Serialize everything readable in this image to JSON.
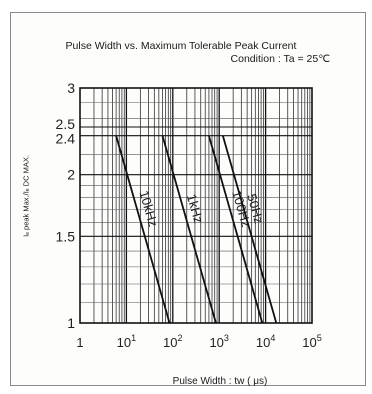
{
  "chart_data": {
    "type": "line",
    "title": "Pulse Width vs. Maximum Tolerable Peak Current",
    "subtitle": "Condition : Ta = 25℃",
    "xlabel": "Pulse Width : tw ( μs)",
    "ylabel": "Iₑ peak Max./Iₑ DC MAX.",
    "x_scale": "log",
    "y_scale": "log",
    "xlim": [
      1,
      100000
    ],
    "ylim": [
      1,
      3
    ],
    "x_tick_labels": [
      {
        "value": 1,
        "base": "1",
        "exp": ""
      },
      {
        "value": 10,
        "base": "10",
        "exp": "1"
      },
      {
        "value": 100,
        "base": "10",
        "exp": "2"
      },
      {
        "value": 1000,
        "base": "10",
        "exp": "3"
      },
      {
        "value": 10000,
        "base": "10",
        "exp": "4"
      },
      {
        "value": 100000,
        "base": "10",
        "exp": "5"
      }
    ],
    "y_ticks": [
      {
        "value": 1,
        "label": "1"
      },
      {
        "value": 1.5,
        "label": "1.5"
      },
      {
        "value": 2,
        "label": "2"
      },
      {
        "value": 2.4,
        "label": "2.4"
      },
      {
        "value": 2.5,
        "label": "2.5"
      },
      {
        "value": 3,
        "label": "3"
      }
    ],
    "grid": true,
    "series": [
      {
        "name": "10kHz",
        "x": [
          6,
          85
        ],
        "y": [
          2.4,
          1
        ]
      },
      {
        "name": "1kHz",
        "x": [
          60,
          850
        ],
        "y": [
          2.4,
          1
        ]
      },
      {
        "name": "100Hz",
        "x": [
          600,
          8500
        ],
        "y": [
          2.4,
          1
        ]
      },
      {
        "name": "50Hz",
        "x": [
          1200,
          17000
        ],
        "y": [
          2.4,
          1
        ]
      }
    ]
  }
}
